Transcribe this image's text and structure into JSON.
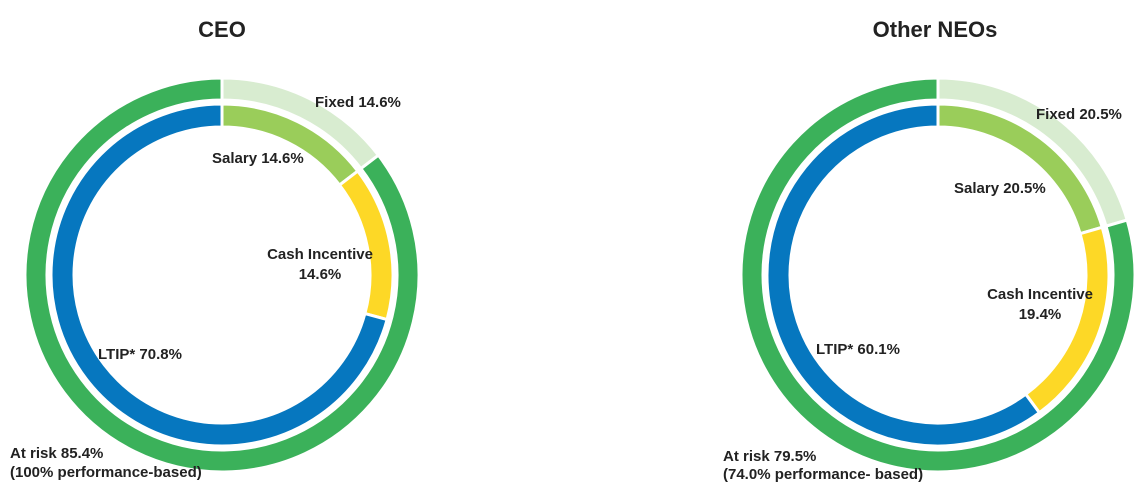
{
  "chart_data": [
    {
      "type": "donut",
      "title": "CEO",
      "outer_ring": [
        {
          "label": "Fixed 14.6%",
          "value": 14.6,
          "color": "#d8ecd0"
        },
        {
          "label": "At risk 85.4%",
          "sublabel": "(100% performance-based)",
          "value": 85.4,
          "color": "#3bb15a"
        }
      ],
      "inner_ring": [
        {
          "label": "Salary 14.6%",
          "value": 14.6,
          "color": "#9acd5a"
        },
        {
          "label": "Cash Incentive",
          "sublabel": "14.6%",
          "value": 14.6,
          "color": "#fdd826"
        },
        {
          "label": "LTIP* 70.8%",
          "value": 70.8,
          "color": "#0677bf"
        }
      ]
    },
    {
      "type": "donut",
      "title": "Other NEOs",
      "outer_ring": [
        {
          "label": "Fixed 20.5%",
          "value": 20.5,
          "color": "#d8ecd0"
        },
        {
          "label": "At risk 79.5%",
          "sublabel": "(74.0% performance- based)",
          "value": 79.5,
          "color": "#3bb15a"
        }
      ],
      "inner_ring": [
        {
          "label": "Salary 20.5%",
          "value": 20.5,
          "color": "#9acd5a"
        },
        {
          "label": "Cash Incentive",
          "sublabel": "19.4%",
          "value": 19.4,
          "color": "#fdd826"
        },
        {
          "label": "LTIP* 60.1%",
          "value": 60.1,
          "color": "#0677bf"
        }
      ]
    }
  ]
}
